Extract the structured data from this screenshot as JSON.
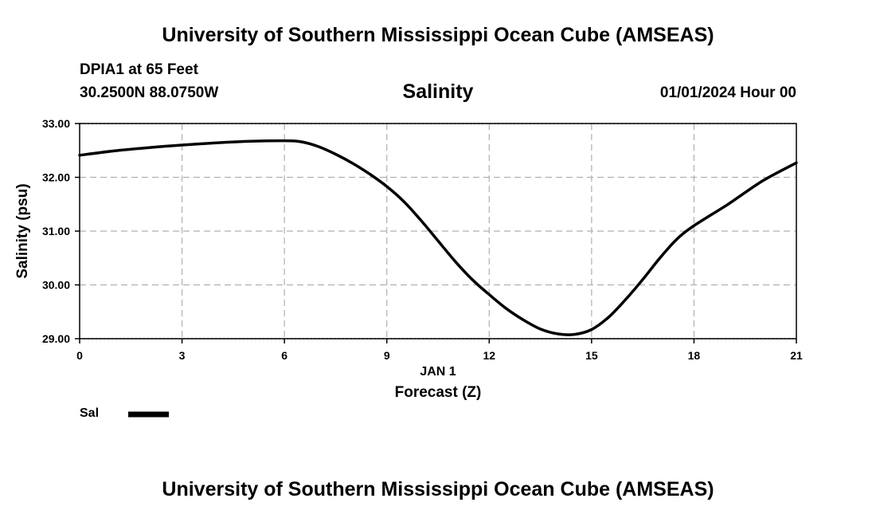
{
  "header": {
    "title_top": "University of Southern Mississippi Ocean Cube (AMSEAS)",
    "title_bottom": "University of Southern Mississippi Ocean Cube (AMSEAS)",
    "station": "DPIA1 at 65 Feet",
    "coords": "30.2500N  88.0750W",
    "datetime": "01/01/2024 Hour 00"
  },
  "legend": {
    "label": "Sal"
  },
  "chart_data": {
    "type": "line",
    "title": "Salinity",
    "xlabel": "Forecast (Z)",
    "xsublabel": "JAN 1",
    "ylabel": "Salinity (psu)",
    "xlim": [
      0,
      21
    ],
    "ylim": [
      29,
      33
    ],
    "xticks": [
      0,
      3,
      6,
      9,
      12,
      15,
      18,
      21
    ],
    "xtick_labels": [
      "0",
      "3",
      "6",
      "9",
      "12",
      "15",
      "18",
      "21"
    ],
    "yticks": [
      29,
      30,
      31,
      32,
      33
    ],
    "ytick_labels": [
      "29.00",
      "30.00",
      "31.00",
      "32.00",
      "33.00"
    ],
    "grid": true,
    "series": [
      {
        "name": "Sal",
        "color": "#000000",
        "x": [
          0,
          1,
          2,
          3,
          4,
          5,
          6,
          6.5,
          7,
          7.5,
          8,
          8.5,
          9,
          9.5,
          10,
          10.5,
          11,
          11.5,
          12,
          12.5,
          13,
          13.5,
          14,
          14.5,
          15,
          15.5,
          16,
          16.5,
          17,
          17.5,
          18,
          19,
          20,
          21
        ],
        "y": [
          32.41,
          32.49,
          32.55,
          32.6,
          32.64,
          32.67,
          32.68,
          32.66,
          32.57,
          32.43,
          32.26,
          32.06,
          31.83,
          31.55,
          31.2,
          30.82,
          30.44,
          30.1,
          29.82,
          29.56,
          29.35,
          29.18,
          29.09,
          29.08,
          29.17,
          29.4,
          29.73,
          30.1,
          30.5,
          30.85,
          31.1,
          31.5,
          31.93,
          32.27
        ]
      }
    ]
  }
}
